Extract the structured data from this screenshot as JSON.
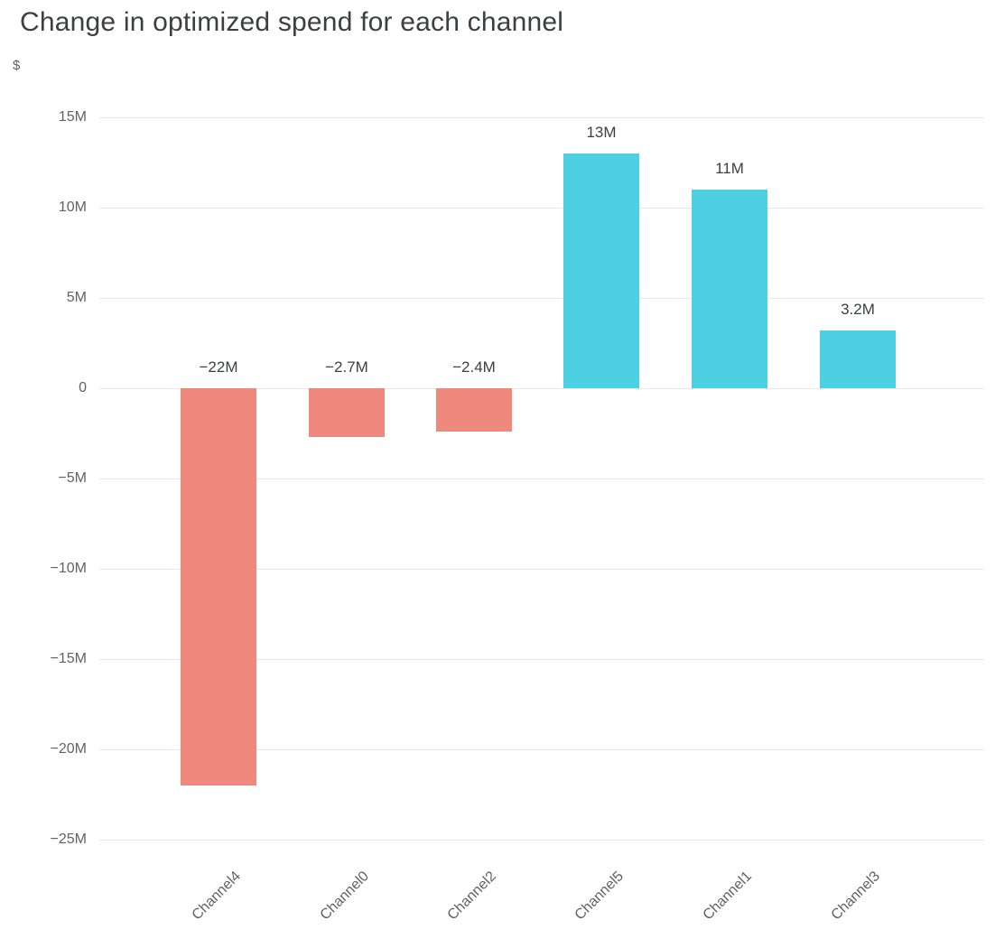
{
  "chart_data": {
    "type": "bar",
    "title": "Change in optimized spend for each channel",
    "ylabel": "$",
    "xlabel": "",
    "categories": [
      "Channel4",
      "Channel0",
      "Channel2",
      "Channel5",
      "Channel1",
      "Channel3"
    ],
    "values": [
      -22,
      -2.7,
      -2.4,
      13,
      11,
      3.2
    ],
    "values_unit": "millions",
    "value_labels": [
      "−22M",
      "−2.7M",
      "−2.4M",
      "13M",
      "11M",
      "3.2M"
    ],
    "ylim": [
      -25,
      15
    ],
    "yticks": [
      15,
      10,
      5,
      0,
      -5,
      -10,
      -15,
      -20,
      -25
    ],
    "ytick_labels": [
      "15M",
      "10M",
      "5M",
      "0",
      "−5M",
      "−10M",
      "−15M",
      "−20M",
      "−25M"
    ],
    "grid": true,
    "legend": "none",
    "colors": {
      "positive": "#4dd0e1",
      "negative": "#f0897d",
      "title_text": "#3c4043",
      "axis_text": "#5f6368",
      "gridline": "#e8e8e8"
    }
  }
}
